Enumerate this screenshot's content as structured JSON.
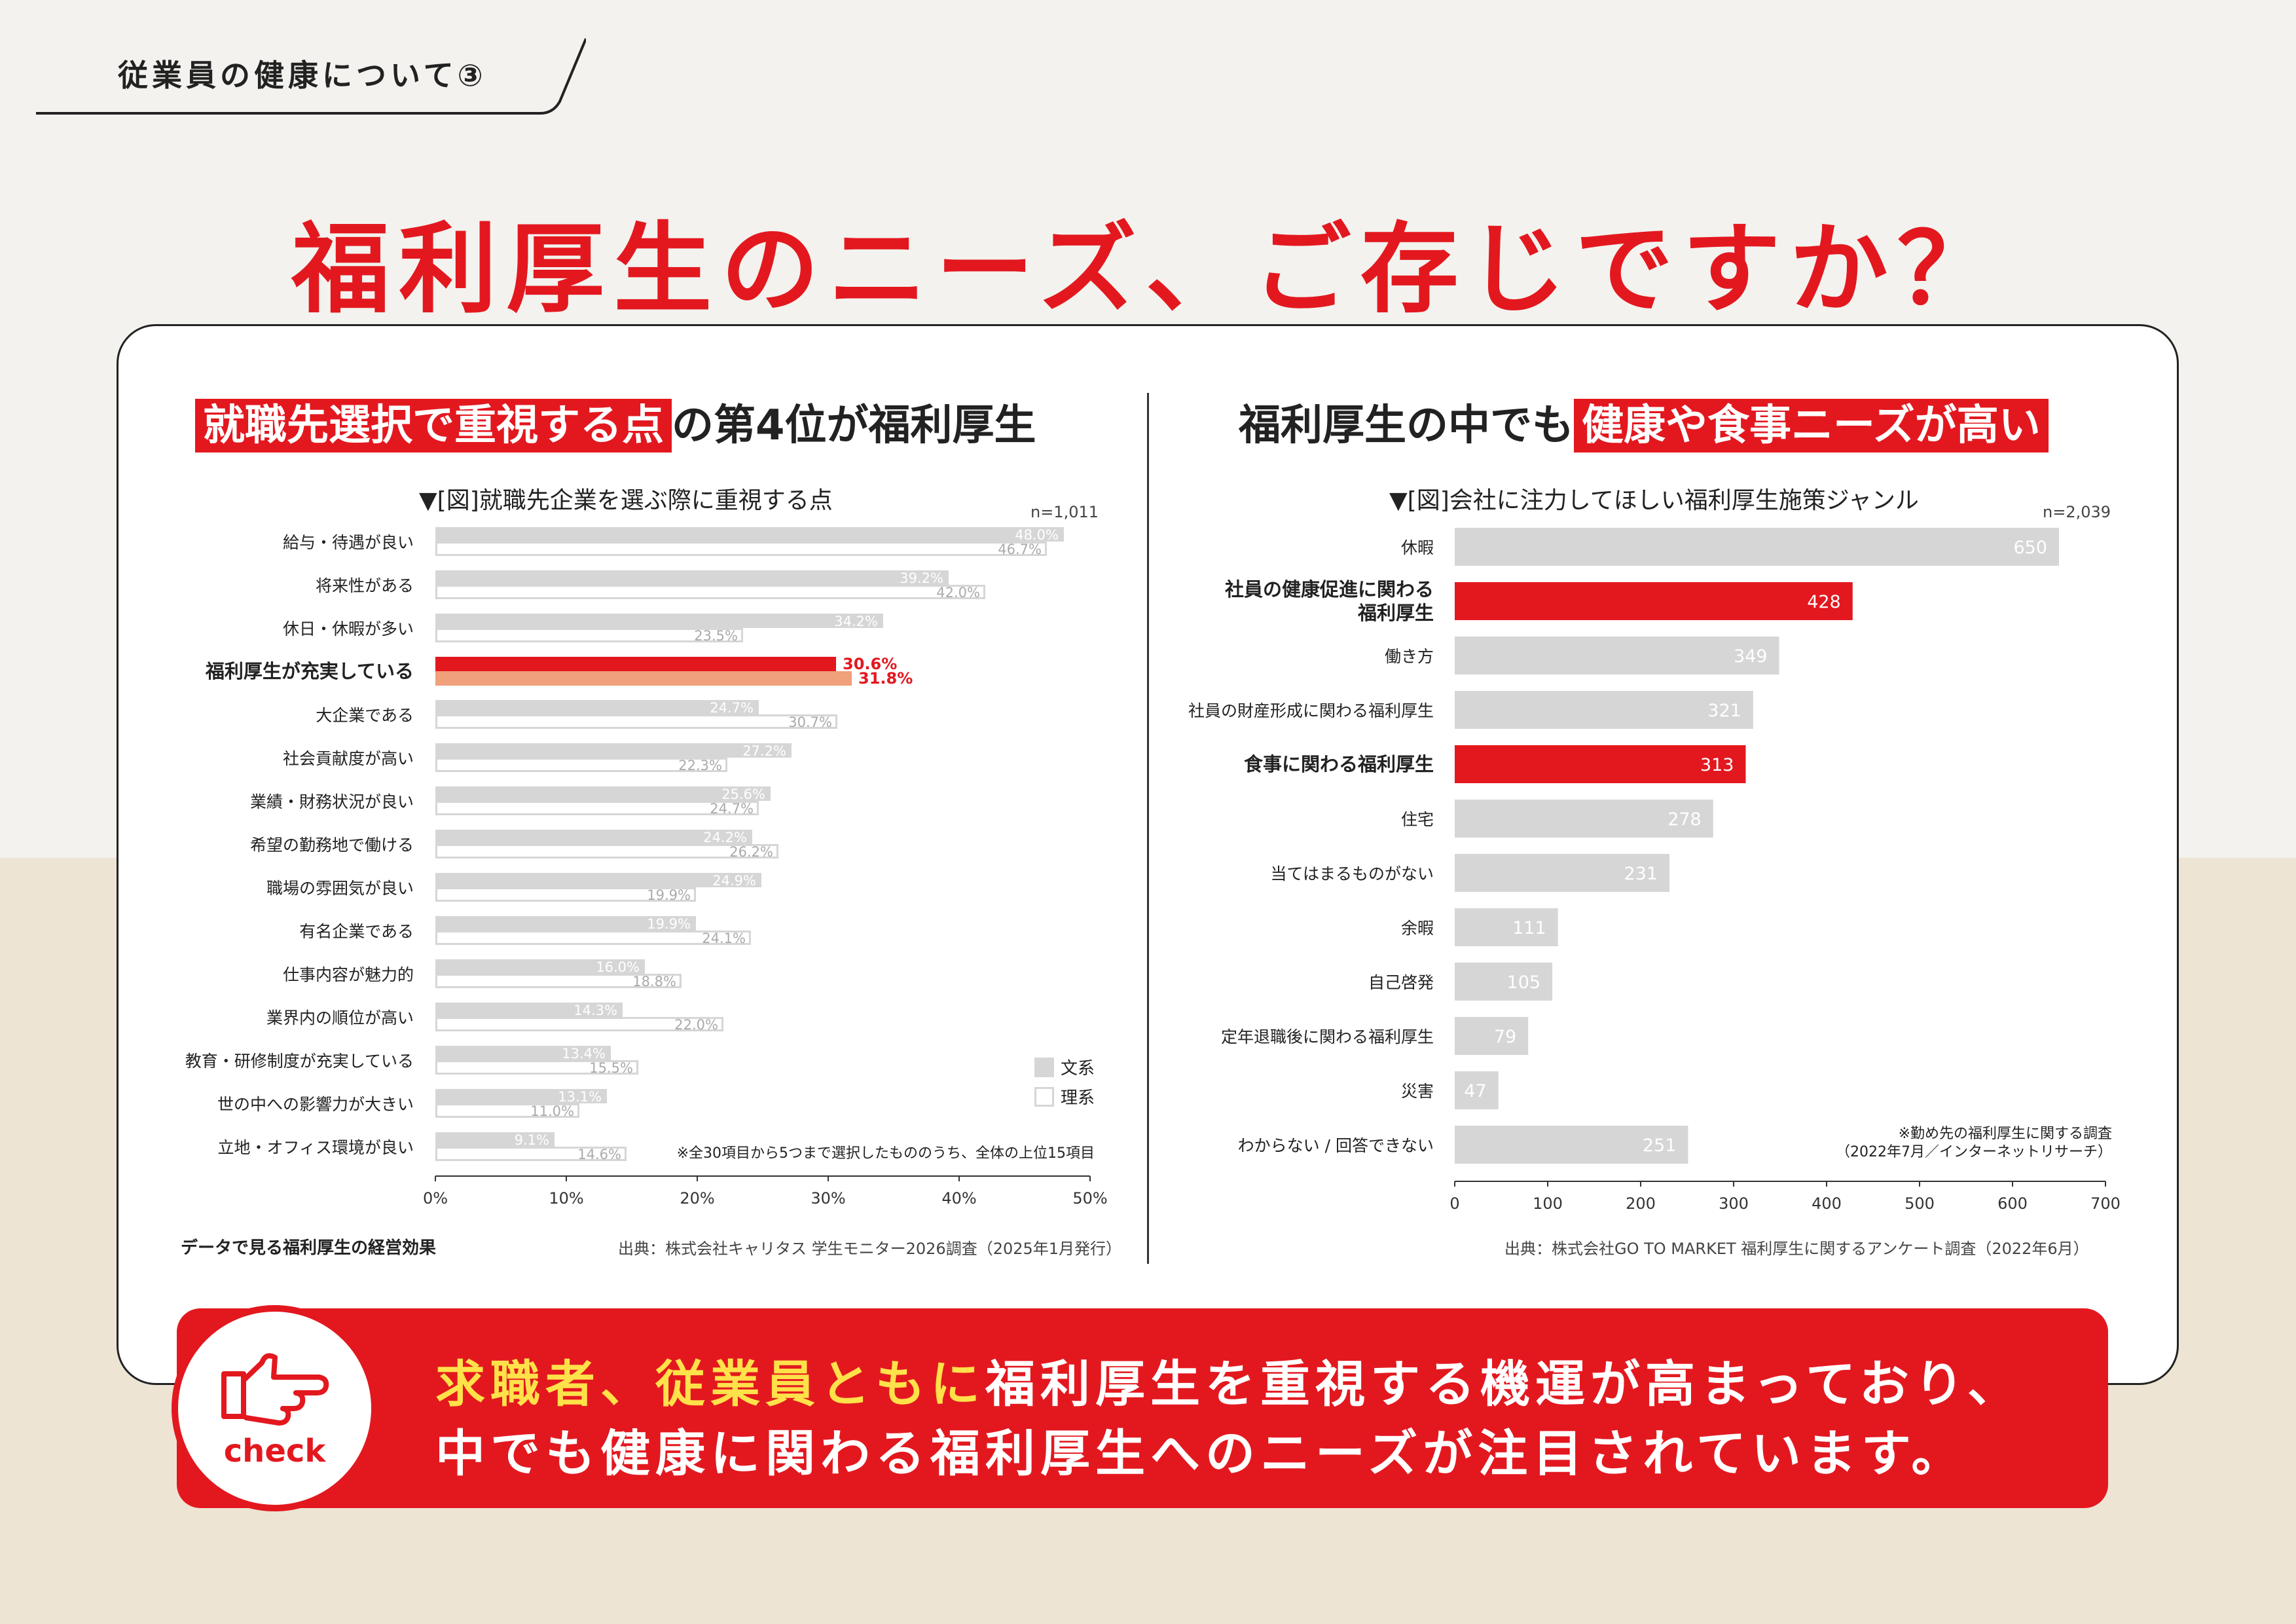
{
  "header_tag": "従業員の健康について③",
  "main_title": "福利厚生のニーズ、ご存じですか？",
  "colors": {
    "accent_red": "#e3181f",
    "salmon": "#f0a07a",
    "gray_bar": "#d6d6d6",
    "yellow": "#ffe14a"
  },
  "left": {
    "title_highlight": "就職先選択で重視する点",
    "title_rest": "の第4位が福利厚生",
    "caption": "▼[図]就職先企業を選ぶ際に重視する点",
    "n": "n=1,011",
    "legend": [
      "文系",
      "理系"
    ],
    "note": "※全30項目から5つまで選択したもののうち、全体の上位15項目",
    "footer_left": "データで見る福利厚生の経営効果",
    "source": "出典：株式会社キャリタス 学生モニター2026調査（2025年1月発行）"
  },
  "right": {
    "title_rest": "福利厚生の中でも",
    "title_highlight": "健康や食事ニーズが高い",
    "caption": "▼[図]会社に注力してほしい福利厚生施策ジャンル",
    "n": "n=2,039",
    "note_line1": "※勤め先の福利厚生に関する調査",
    "note_line2": "（2022年7月／インターネットリサーチ）",
    "source": "出典：株式会社GO TO MARKET 福利厚生に関するアンケート調査（2022年6月）"
  },
  "chart_data": [
    {
      "type": "bar",
      "orientation": "horizontal",
      "title": "▼[図]就職先企業を選ぶ際に重視する点",
      "categories": [
        "給与・待遇が良い",
        "将来性がある",
        "休日・休暇が多い",
        "福利厚生が充実している",
        "大企業である",
        "社会貢献度が高い",
        "業績・財務状況が良い",
        "希望の勤務地で働ける",
        "職場の雰囲気が良い",
        "有名企業である",
        "仕事内容が魅力的",
        "業界内の順位が高い",
        "教育・研修制度が充実している",
        "世の中への影響力が大きい",
        "立地・オフィス環境が良い"
      ],
      "series": [
        {
          "name": "文系",
          "values": [
            48.0,
            39.2,
            34.2,
            30.6,
            24.7,
            27.2,
            25.6,
            24.2,
            24.9,
            19.9,
            16.0,
            14.3,
            13.4,
            13.1,
            9.1
          ]
        },
        {
          "name": "理系",
          "values": [
            46.7,
            42.0,
            23.5,
            31.8,
            30.7,
            22.3,
            24.7,
            26.2,
            19.9,
            24.1,
            18.8,
            22.0,
            15.5,
            11.0,
            14.6
          ]
        }
      ],
      "highlight_category": "福利厚生が充実している",
      "xlim": [
        0,
        50
      ],
      "xticks": [
        "0%",
        "10%",
        "20%",
        "30%",
        "40%",
        "50%"
      ],
      "legend_position": "bottom-right"
    },
    {
      "type": "bar",
      "orientation": "horizontal",
      "title": "▼[図]会社に注力してほしい福利厚生施策ジャンル",
      "categories": [
        "休暇",
        "社員の健康促進に関わる福利厚生",
        "働き方",
        "社員の財産形成に関わる福利厚生",
        "食事に関わる福利厚生",
        "住宅",
        "当てはまるものがない",
        "余暇",
        "自己啓発",
        "定年退職後に関わる福利厚生",
        "災害",
        "わからない／回答できない"
      ],
      "category_labels": [
        [
          "休暇"
        ],
        [
          "社員の健康促進に関わる",
          "福利厚生"
        ],
        [
          "働き方"
        ],
        [
          "社員の財産形成に関わる福利厚生"
        ],
        [
          "食事に関わる福利厚生"
        ],
        [
          "住宅"
        ],
        [
          "当てはまるものがない"
        ],
        [
          "余暇"
        ],
        [
          "自己啓発"
        ],
        [
          "定年退職後に関わる福利厚生"
        ],
        [
          "災害"
        ],
        [
          "わからない / 回答できない"
        ]
      ],
      "values": [
        650,
        428,
        349,
        321,
        313,
        278,
        231,
        111,
        105,
        79,
        47,
        251
      ],
      "highlight_categories": [
        "社員の健康促進に関わる福利厚生",
        "食事に関わる福利厚生"
      ],
      "xlim": [
        0,
        700
      ],
      "xticks": [
        "0",
        "100",
        "200",
        "300",
        "400",
        "500",
        "600",
        "700"
      ]
    }
  ],
  "check": {
    "icon_label": "check",
    "line1_highlight": "求職者、従業員ともに",
    "line1_rest": "福利厚生を重視する機運が高まっており、",
    "line2": "中でも健康に関わる福利厚生へのニーズが注目されています。"
  }
}
